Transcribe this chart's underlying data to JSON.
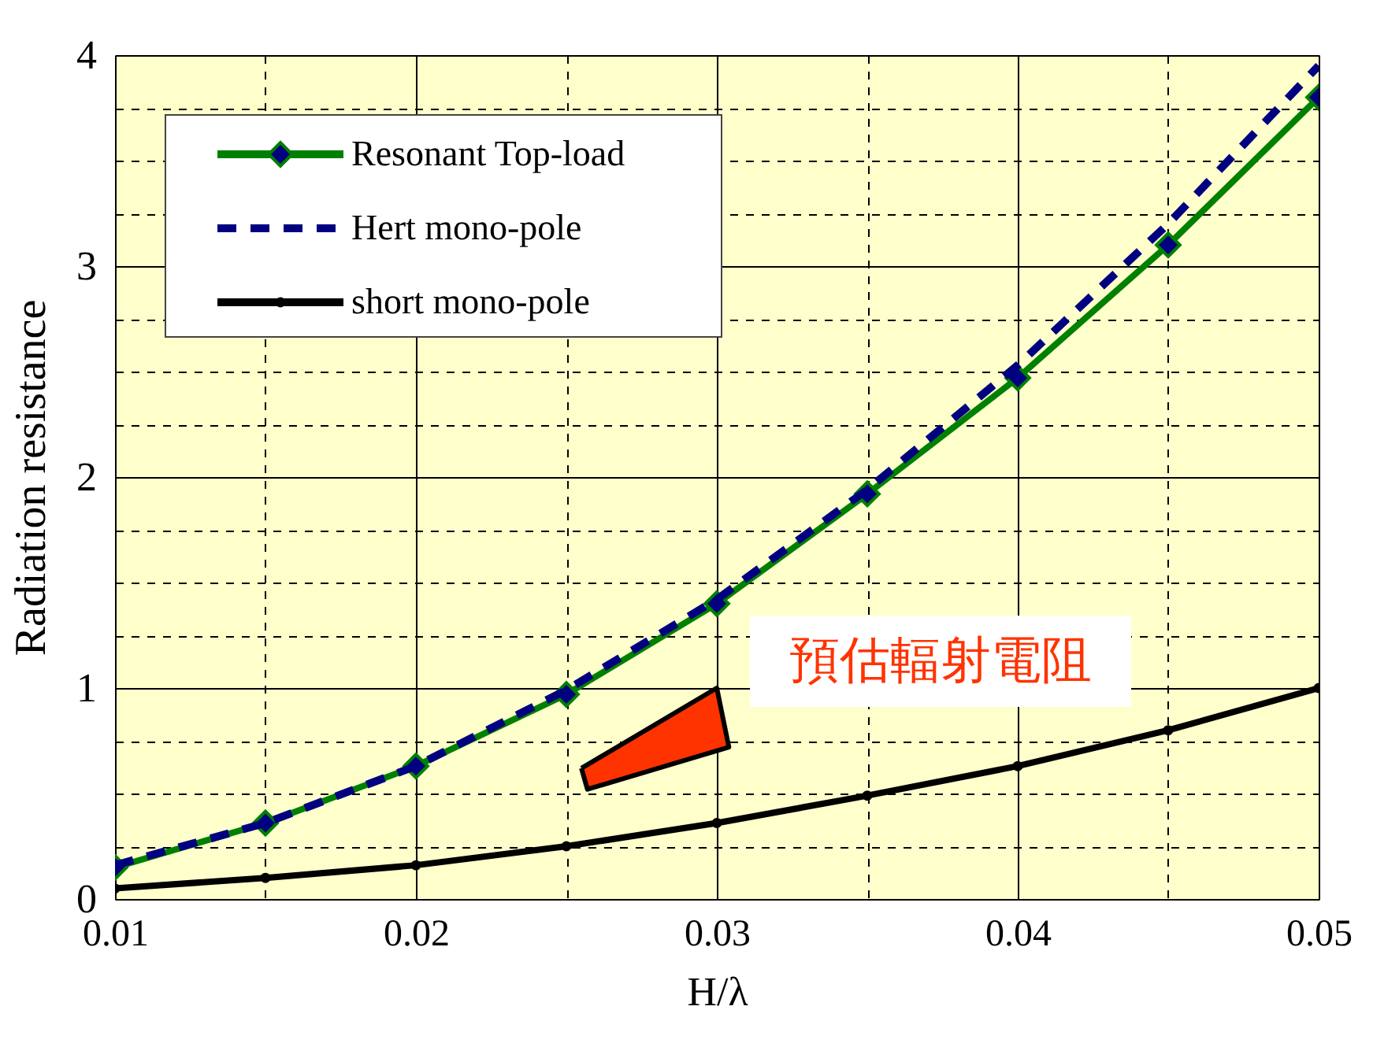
{
  "chart_data": {
    "type": "line",
    "xlabel": "H/λ",
    "ylabel": "Radiation resistance",
    "x": [
      0.01,
      0.015,
      0.02,
      0.025,
      0.03,
      0.035,
      0.04,
      0.045,
      0.05
    ],
    "series": [
      {
        "name": "Resonant Top-load",
        "color": "#008000",
        "marker": "diamond",
        "line_style": "solid",
        "values": [
          0.15,
          0.36,
          0.63,
          0.97,
          1.4,
          1.92,
          2.47,
          3.1,
          3.8
        ]
      },
      {
        "name": "Hert mono-pole",
        "color": "#000080",
        "marker": "none",
        "line_style": "dashed",
        "values": [
          0.16,
          0.36,
          0.63,
          0.99,
          1.42,
          1.94,
          2.53,
          3.2,
          3.95
        ]
      },
      {
        "name": "short mono-pole",
        "color": "#000000",
        "marker": "circle",
        "line_style": "solid",
        "values": [
          0.05,
          0.1,
          0.16,
          0.25,
          0.36,
          0.49,
          0.63,
          0.8,
          1.0
        ]
      }
    ],
    "xlim": [
      0.01,
      0.05
    ],
    "xticks": [
      0.01,
      {
        "value": 0.015,
        "label": null
      },
      0.02,
      {
        "value": 0.025,
        "label": null
      },
      0.03,
      {
        "value": 0.035,
        "label": null
      },
      0.04,
      {
        "value": 0.045,
        "label": null
      },
      0.05
    ],
    "ylim": [
      0,
      4
    ],
    "yticks": [
      0,
      {
        "value": 0.25,
        "label": null
      },
      {
        "value": 0.5,
        "label": null
      },
      {
        "value": 0.75,
        "label": null
      },
      1,
      {
        "value": 1.25,
        "label": null
      },
      {
        "value": 1.5,
        "label": null
      },
      {
        "value": 1.75,
        "label": null
      },
      2,
      {
        "value": 2.25,
        "label": null
      },
      {
        "value": 2.5,
        "label": null
      },
      {
        "value": 2.75,
        "label": null
      },
      3,
      {
        "value": 3.25,
        "label": null
      },
      {
        "value": 3.5,
        "label": null
      },
      {
        "value": 3.75,
        "label": null
      },
      4
    ],
    "grid": true,
    "legend": "top left",
    "annotations": [
      "預估輻射電阻"
    ]
  }
}
